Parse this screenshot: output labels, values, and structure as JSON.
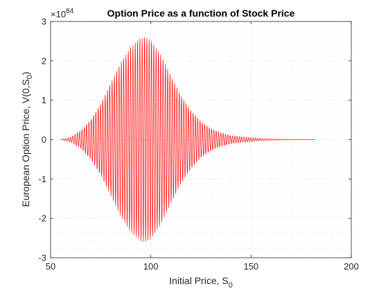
{
  "chart_data": {
    "type": "line",
    "title": "Option Price as a function of Stock Price",
    "xlabel": {
      "text": "Initial Price, S",
      "subscript": "0"
    },
    "ylabel": {
      "prefix": "European Option Price, V(0,S",
      "subscript": "0",
      "suffix": ")"
    },
    "y_multiplier": {
      "base": "×10",
      "exponent": "84"
    },
    "xlim": [
      50,
      200
    ],
    "ylim": [
      -3,
      3
    ],
    "x_ticks": [
      "50",
      "100",
      "150",
      "200"
    ],
    "y_ticks": [
      "3",
      "2",
      "1",
      "0",
      "-1",
      "-2",
      "-3"
    ],
    "grid": "dotted major and minor",
    "series": [
      {
        "color": "#ff0000",
        "envelope": {
          "x": [
            55,
            60,
            65,
            70,
            75,
            80,
            85,
            90,
            95,
            97,
            100,
            105,
            110,
            115,
            120,
            125,
            130,
            135,
            140,
            145,
            150,
            155,
            160,
            165,
            170,
            175,
            182
          ],
          "amplitude": [
            0.0,
            0.06,
            0.22,
            0.5,
            0.9,
            1.42,
            1.95,
            2.35,
            2.58,
            2.6,
            2.52,
            2.15,
            1.62,
            1.12,
            0.74,
            0.46,
            0.28,
            0.17,
            0.1,
            0.07,
            0.05,
            0.03,
            0.02,
            0.012,
            0.006,
            0.003,
            0.0
          ]
        },
        "x_range": [
          55,
          182
        ],
        "approx_cycles": 110
      }
    ]
  }
}
